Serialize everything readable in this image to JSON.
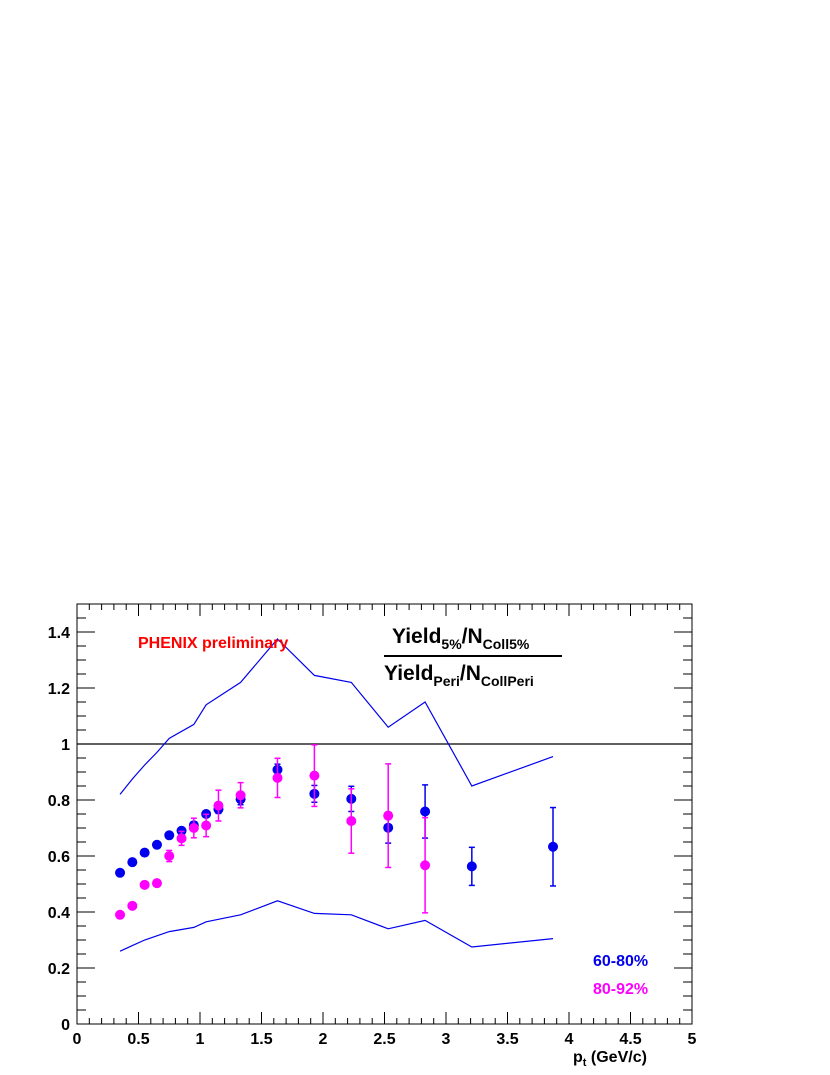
{
  "chart_data": {
    "type": "scatter",
    "title": "PHENIX preliminary",
    "ratio_label": {
      "num_main": "Yield",
      "num_sub": "5%",
      "num_slash": "/N",
      "num_sub2": "Coll5%",
      "den_main": "Yield",
      "den_sub": "Peri",
      "den_slash": "/N",
      "den_sub2": "CollPeri"
    },
    "xlabel": {
      "main": "p",
      "sub": "t",
      "rest": " (GeV/c)"
    },
    "ylabel": "",
    "xlim": [
      0,
      5
    ],
    "ylim": [
      0,
      1.5
    ],
    "x_ticks": [
      "0",
      "0.5",
      "1",
      "1.5",
      "2",
      "2.5",
      "3",
      "3.5",
      "4",
      "4.5",
      "5"
    ],
    "x_tick_values": [
      0,
      0.5,
      1,
      1.5,
      2,
      2.5,
      3,
      3.5,
      4,
      4.5,
      5
    ],
    "y_ticks": [
      "0",
      "0.2",
      "0.4",
      "0.6",
      "0.8",
      "1",
      "1.2",
      "1.4"
    ],
    "y_tick_values": [
      0,
      0.2,
      0.4,
      0.6,
      0.8,
      1,
      1.2,
      1.4
    ],
    "reference_line": 1,
    "colors": {
      "blue": "#0000ee",
      "magenta": "#ff00ff",
      "red": "#ff0000",
      "axis": "#000000"
    },
    "series": [
      {
        "name": "60-80%",
        "color": "#0000ee",
        "x": [
          0.35,
          0.45,
          0.55,
          0.65,
          0.75,
          0.85,
          0.95,
          1.05,
          1.15,
          1.33,
          1.63,
          1.93,
          2.23,
          2.53,
          2.83,
          3.21,
          3.87
        ],
        "y": [
          0.54,
          0.578,
          0.612,
          0.64,
          0.674,
          0.69,
          0.71,
          0.75,
          0.767,
          0.803,
          0.908,
          0.822,
          0.804,
          0.701,
          0.759,
          0.563,
          0.633
        ],
        "err": [
          0,
          0,
          0,
          0,
          0,
          0,
          0.01,
          0.01,
          0.015,
          0.02,
          0.02,
          0.03,
          0.045,
          0.055,
          0.095,
          0.068,
          0.14
        ]
      },
      {
        "name": "80-92%",
        "color": "#ff00ff",
        "x": [
          0.35,
          0.45,
          0.55,
          0.65,
          0.75,
          0.85,
          0.95,
          1.05,
          1.15,
          1.33,
          1.63,
          1.93,
          2.23,
          2.53,
          2.83
        ],
        "y": [
          0.39,
          0.422,
          0.497,
          0.503,
          0.6,
          0.663,
          0.7,
          0.709,
          0.78,
          0.817,
          0.879,
          0.887,
          0.725,
          0.744,
          0.567
        ],
        "err": [
          0,
          0,
          0,
          0,
          0.02,
          0.025,
          0.035,
          0.04,
          0.055,
          0.045,
          0.07,
          0.11,
          0.115,
          0.185,
          0.17
        ]
      }
    ],
    "band_upper": {
      "x": [
        0.35,
        0.45,
        0.55,
        0.65,
        0.75,
        0.95,
        1.05,
        1.33,
        1.63,
        1.93,
        2.23,
        2.53,
        2.83,
        3.21,
        3.87
      ],
      "y": [
        0.82,
        0.875,
        0.925,
        0.97,
        1.02,
        1.07,
        1.14,
        1.22,
        1.375,
        1.245,
        1.22,
        1.06,
        1.15,
        0.85,
        0.955
      ]
    },
    "band_lower": {
      "x": [
        0.35,
        0.45,
        0.55,
        0.75,
        0.95,
        1.05,
        1.33,
        1.63,
        1.93,
        2.23,
        2.53,
        2.83,
        3.21,
        3.87
      ],
      "y": [
        0.26,
        0.28,
        0.3,
        0.33,
        0.345,
        0.365,
        0.39,
        0.44,
        0.395,
        0.39,
        0.34,
        0.37,
        0.275,
        0.305
      ]
    },
    "legend": [
      "60-80%",
      "80-92%"
    ],
    "legend_placement": "bottom-right",
    "grid": false
  }
}
